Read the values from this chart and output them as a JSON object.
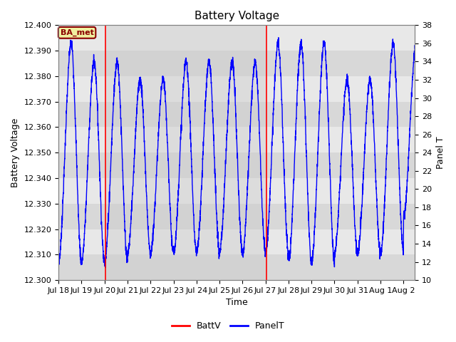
{
  "title": "Battery Voltage",
  "xlabel": "Time",
  "ylabel_left": "Battery Voltage",
  "ylabel_right": "Panel T",
  "xlim_start": 0,
  "xlim_end": 15.5,
  "ylim_left": [
    12.3,
    12.4
  ],
  "ylim_right": [
    10,
    38
  ],
  "x_tick_labels": [
    "Jul 18",
    "Jul 19",
    "Jul 20",
    "Jul 21",
    "Jul 22",
    "Jul 23",
    "Jul 24",
    "Jul 25",
    "Jul 26",
    "Jul 27",
    "Jul 28",
    "Jul 29",
    "Jul 30",
    "Jul 31",
    "Aug 1",
    "Aug 2"
  ],
  "vline1_x": 2.05,
  "vline2_x": 9.05,
  "ba_met_label": "BA_met",
  "plot_bg_color": "#e8e8e8",
  "hband_light": "#e8e8e8",
  "hband_dark": "#d8d8d8",
  "vline_color": "red",
  "line_color": "blue",
  "title_fontsize": 11,
  "axis_label_fontsize": 9,
  "tick_fontsize": 8,
  "right_ticks": [
    10,
    12,
    14,
    16,
    18,
    20,
    22,
    24,
    26,
    28,
    30,
    32,
    34,
    36,
    38
  ],
  "left_ticks": [
    12.3,
    12.31,
    12.32,
    12.33,
    12.34,
    12.35,
    12.36,
    12.37,
    12.38,
    12.39,
    12.4
  ]
}
